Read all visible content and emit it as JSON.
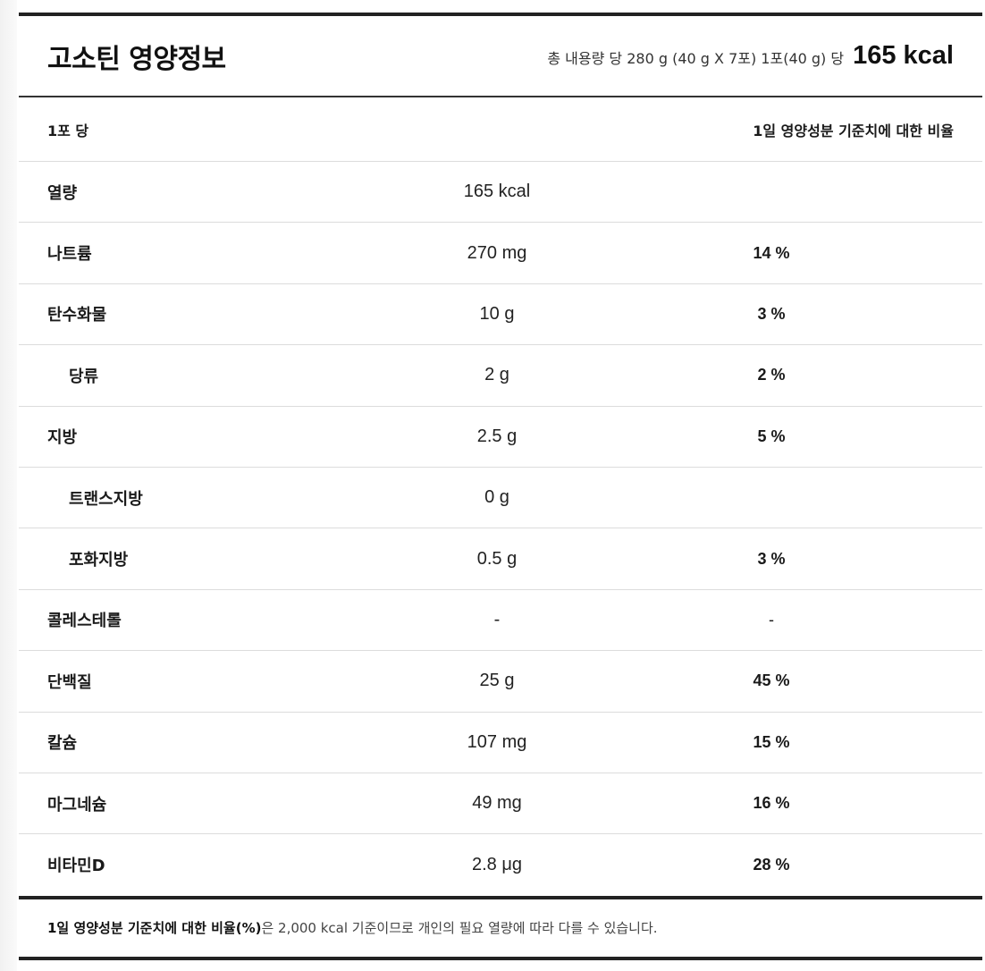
{
  "header": {
    "title": "고소틴 영양정보",
    "serving_info": "총 내용량 당 280 g (40 g X 7포) 1포(40 g) 당",
    "calories": "165 kcal"
  },
  "columns": {
    "left": "1포 당",
    "right": "1일 영양성분 기준치에 대한 비율"
  },
  "rows": [
    {
      "name": "열량",
      "amount": "165 kcal",
      "percent": ""
    },
    {
      "name": "나트륨",
      "amount": "270 mg",
      "percent": "14 %"
    },
    {
      "name": "탄수화물",
      "amount": "10 g",
      "percent": "3 %"
    },
    {
      "name": "당류",
      "amount": "2 g",
      "percent": "2 %"
    },
    {
      "name": "지방",
      "amount": "2.5 g",
      "percent": "5 %"
    },
    {
      "name": "트랜스지방",
      "amount": "0 g",
      "percent": ""
    },
    {
      "name": "포화지방",
      "amount": "0.5 g",
      "percent": "3 %"
    },
    {
      "name": "콜레스테롤",
      "amount": "-",
      "percent": "-"
    },
    {
      "name": "단백질",
      "amount": "25 g",
      "percent": "45 %"
    },
    {
      "name": "칼슘",
      "amount": "107 mg",
      "percent": "15 %"
    },
    {
      "name": "마그네슘",
      "amount": "49 mg",
      "percent": "16 %"
    },
    {
      "name": "비타민D",
      "amount": "2.8 μg",
      "percent": "28 %"
    }
  ],
  "footnote": {
    "bold": "1일 영양성분 기준치에 대한 비율(%)",
    "rest": "은 2,000 kcal 기준이므로 개인의 필요 열량에 따라 다를 수 있습니다."
  }
}
